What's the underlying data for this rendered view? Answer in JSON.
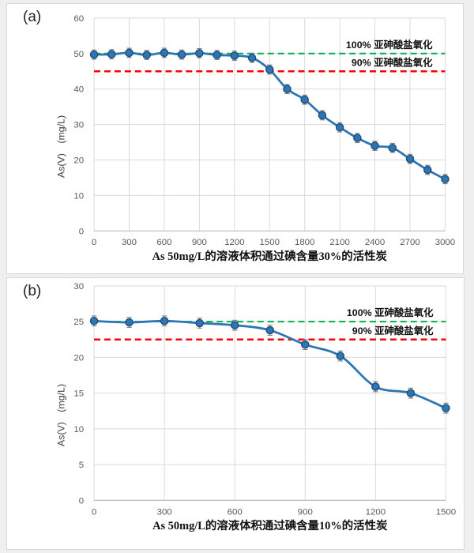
{
  "panels": [
    {
      "label": "(a)"
    },
    {
      "label": "(b)"
    }
  ],
  "chart_data": [
    {
      "type": "line",
      "panel": "a",
      "title": "",
      "xlabel": "As 50mg/L的溶液体积通过碘含量30%的活性炭",
      "ylabel": "As(V)　(mg/L)",
      "xlim": [
        0,
        3000
      ],
      "ylim": [
        0,
        60
      ],
      "xticks": [
        0,
        300,
        600,
        900,
        1200,
        1500,
        1800,
        2100,
        2400,
        2700,
        3000
      ],
      "yticks": [
        0,
        10,
        20,
        30,
        40,
        50,
        60
      ],
      "grid": true,
      "legend": "none",
      "x": [
        0,
        150,
        300,
        450,
        600,
        750,
        900,
        1050,
        1200,
        1350,
        1500,
        1650,
        1800,
        1950,
        2100,
        2250,
        2400,
        2550,
        2700,
        2850,
        3000
      ],
      "series": [
        {
          "name": "As(V)",
          "values": [
            49.7,
            49.8,
            50.2,
            49.6,
            50.2,
            49.7,
            50.1,
            49.6,
            49.4,
            48.8,
            45.5,
            40.0,
            37.0,
            32.6,
            29.2,
            26.2,
            24.0,
            23.4,
            20.3,
            17.2,
            14.6
          ]
        }
      ],
      "error_bar": 1.3,
      "reference_lines": [
        {
          "value": 50,
          "color": "#00B050",
          "style": "dashed",
          "label": "100% 亚砷酸盐氧化"
        },
        {
          "value": 45,
          "color": "#FF0000",
          "style": "dashed",
          "label": "90% 亚砷酸盐氧化"
        }
      ],
      "colors": {
        "line": "#2E75B6",
        "marker_fill": "#2E75B6",
        "marker_stroke": "#1F4E79",
        "error": "#7F7F7F",
        "grid": "#DADADA",
        "axis": "#BFBFBF",
        "tick_text": "#595959",
        "label_text": "#111111"
      }
    },
    {
      "type": "line",
      "panel": "b",
      "title": "",
      "xlabel": "As 50mg/L的溶液体积通过碘含量10%的活性炭",
      "ylabel": "As(V)　(mg/L)",
      "xlim": [
        0,
        1500
      ],
      "ylim": [
        0,
        30
      ],
      "xticks": [
        0,
        300,
        600,
        900,
        1200,
        1500
      ],
      "yticks": [
        0,
        5,
        10,
        15,
        20,
        25,
        30
      ],
      "grid": true,
      "legend": "none",
      "x": [
        0,
        150,
        300,
        450,
        600,
        750,
        900,
        1050,
        1200,
        1350,
        1500
      ],
      "series": [
        {
          "name": "As(V)",
          "values": [
            25.1,
            24.9,
            25.1,
            24.8,
            24.5,
            23.8,
            21.8,
            20.2,
            15.9,
            15.0,
            12.9
          ]
        }
      ],
      "error_bar": 0.7,
      "reference_lines": [
        {
          "value": 25,
          "color": "#00B050",
          "style": "dashed",
          "label": "100% 亚砷酸盐氧化"
        },
        {
          "value": 22.5,
          "color": "#FF0000",
          "style": "dashed",
          "label": "90% 亚砷酸盐氧化"
        }
      ],
      "colors": {
        "line": "#2E75B6",
        "marker_fill": "#2E75B6",
        "marker_stroke": "#1F4E79",
        "error": "#7F7F7F",
        "grid": "#DADADA",
        "axis": "#BFBFBF",
        "tick_text": "#595959",
        "label_text": "#111111"
      }
    }
  ]
}
